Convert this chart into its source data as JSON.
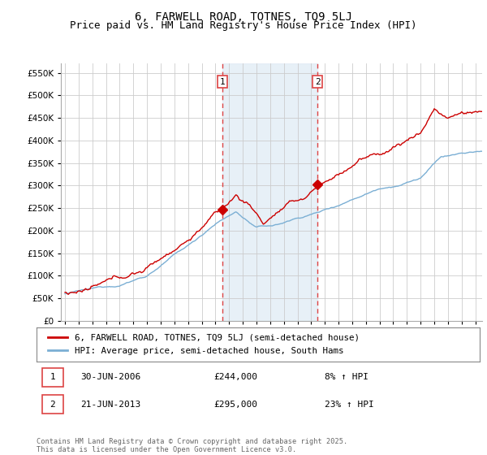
{
  "title": "6, FARWELL ROAD, TOTNES, TQ9 5LJ",
  "subtitle": "Price paid vs. HM Land Registry's House Price Index (HPI)",
  "ytick_values": [
    0,
    50000,
    100000,
    150000,
    200000,
    250000,
    300000,
    350000,
    400000,
    450000,
    500000,
    550000
  ],
  "ylim": [
    0,
    570000
  ],
  "xlim_start": 1994.7,
  "xlim_end": 2025.5,
  "price_paid_color": "#cc0000",
  "hpi_color": "#7bafd4",
  "vline1_x": 2006.5,
  "vline2_x": 2013.47,
  "vline_color": "#dd4444",
  "vline_fill_color": "#deeaf5",
  "marker1_x": 2006.5,
  "marker1_y": 244000,
  "marker2_x": 2013.47,
  "marker2_y": 295000,
  "legend_line1": "6, FARWELL ROAD, TOTNES, TQ9 5LJ (semi-detached house)",
  "legend_line2": "HPI: Average price, semi-detached house, South Hams",
  "footer": "Contains HM Land Registry data © Crown copyright and database right 2025.\nThis data is licensed under the Open Government Licence v3.0.",
  "bg_color": "#ffffff",
  "plot_bg_color": "#ffffff",
  "grid_color": "#cccccc",
  "title_fontsize": 10,
  "subtitle_fontsize": 9,
  "tick_fontsize": 7.5
}
